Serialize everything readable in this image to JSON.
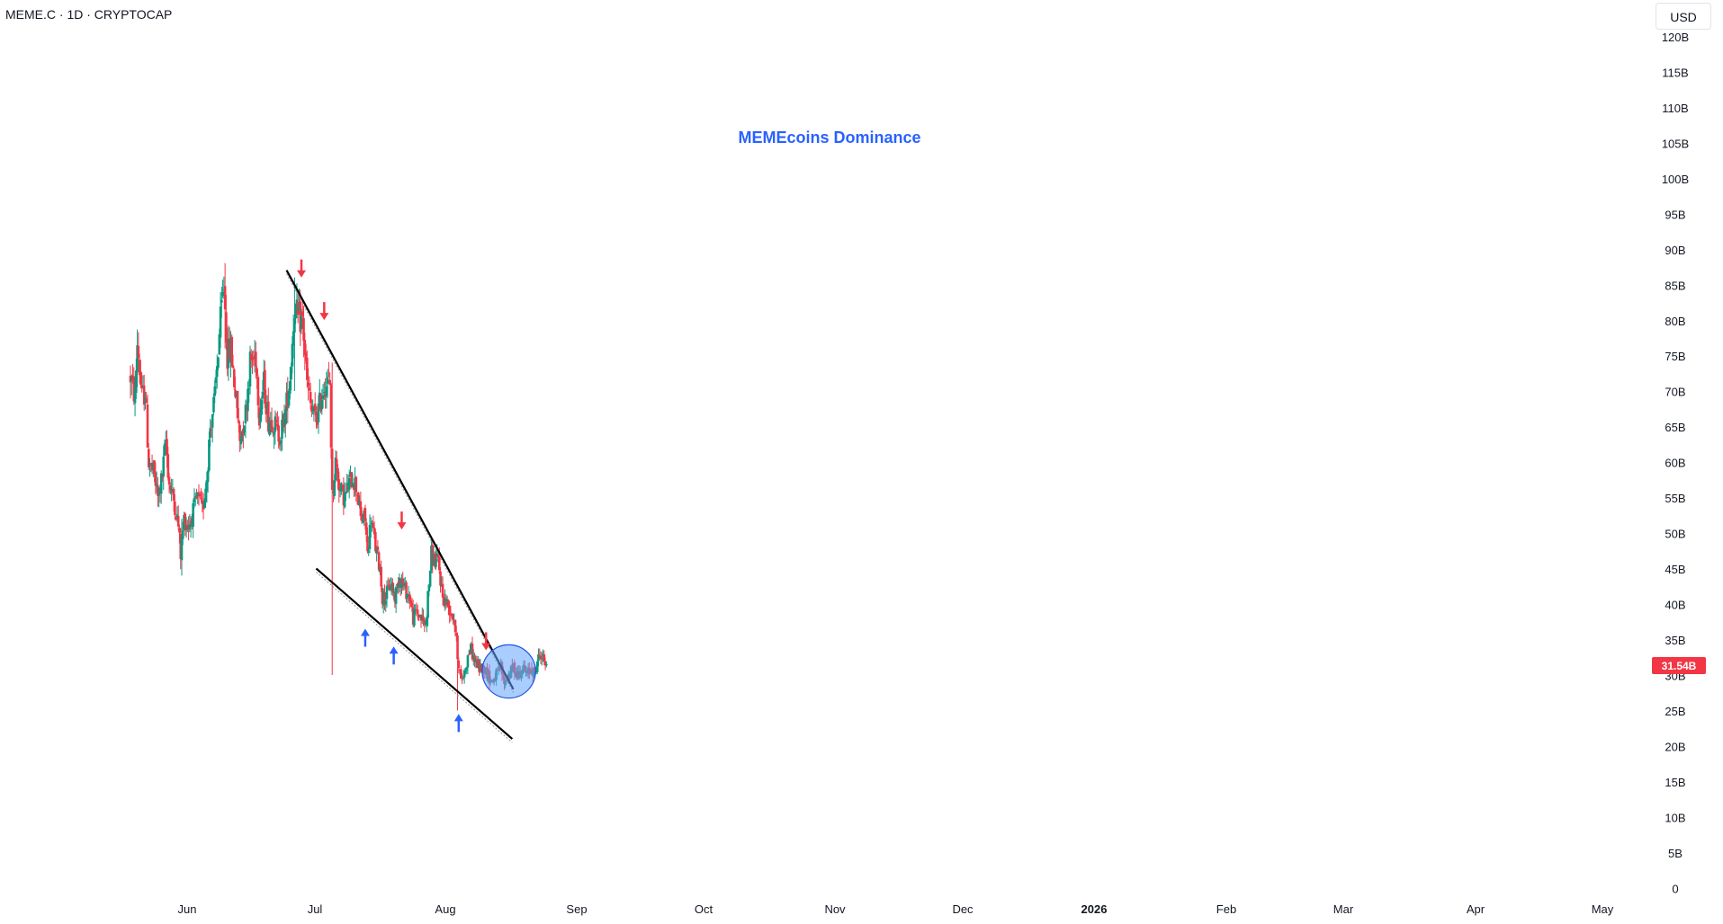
{
  "header": {
    "symbol": "MEME.C · 1D · CRYPTOCAP",
    "currency": "USD"
  },
  "chart_data": {
    "type": "candlestick",
    "title": "MEMEcoins Dominance",
    "price_label": "31.54B",
    "y_ticks": [
      "120B",
      "115B",
      "110B",
      "105B",
      "100B",
      "95B",
      "90B",
      "85B",
      "80B",
      "75B",
      "70B",
      "65B",
      "60B",
      "55B",
      "50B",
      "45B",
      "40B",
      "35B",
      "30B",
      "25B",
      "20B",
      "15B",
      "10B",
      "5B",
      "0"
    ],
    "x_ticks": [
      "Jun",
      "Jul",
      "Aug",
      "Sep",
      "Oct",
      "Nov",
      "Dec",
      "2026",
      "Feb",
      "Mar",
      "Apr",
      "May"
    ],
    "ylim": [
      0,
      120
    ],
    "x_start": "2025-05-22",
    "last_value": 31.54,
    "colors": {
      "up": "#089981",
      "down": "#f23645",
      "title": "#2962ff",
      "arrow_down": "#f23645",
      "arrow_up": "#2962ff",
      "circle": "#64a4ff"
    },
    "anchors": [
      [
        "2025-05-22",
        72
      ],
      [
        "2025-05-26",
        69
      ],
      [
        "2025-05-28",
        77
      ],
      [
        "2025-06-01",
        69
      ],
      [
        "2025-06-04",
        70
      ],
      [
        "2025-06-07",
        60
      ],
      [
        "2025-06-12",
        58
      ],
      [
        "2025-06-15",
        55
      ],
      [
        "2025-06-19",
        58
      ],
      [
        "2025-06-22",
        63
      ],
      [
        "2025-06-25",
        57
      ],
      [
        "2025-06-30",
        54
      ],
      [
        "2025-07-03",
        51
      ],
      [
        "2025-07-05",
        47
      ],
      [
        "2025-07-08",
        52
      ],
      [
        "2025-07-12",
        51
      ],
      [
        "2025-07-16",
        53
      ],
      [
        "2025-07-20",
        55
      ],
      [
        "2025-07-24",
        53
      ],
      [
        "2025-07-28",
        58
      ],
      [
        "2025-07-31",
        65
      ],
      [
        "2025-08-04",
        69
      ],
      [
        "2025-08-08",
        78
      ],
      [
        "2025-08-12",
        85
      ],
      [
        "2025-08-15",
        75
      ],
      [
        "2025-08-18",
        76
      ],
      [
        "2025-08-22",
        70
      ],
      [
        "2025-08-26",
        63
      ],
      [
        "2025-08-31",
        67
      ],
      [
        "2025-09-04",
        74
      ],
      [
        "2025-09-09",
        75
      ],
      [
        "2025-09-12",
        67
      ],
      [
        "2025-09-16",
        71
      ],
      [
        "2025-09-20",
        66
      ],
      [
        "2025-09-24",
        66
      ],
      [
        "2025-09-28",
        64
      ],
      [
        "2025-10-01",
        64
      ],
      [
        "2025-10-05",
        67
      ],
      [
        "2025-10-09",
        72
      ],
      [
        "2025-10-13",
        82
      ],
      [
        "2025-10-16",
        80
      ],
      [
        "2025-10-20",
        80
      ],
      [
        "2025-10-24",
        71
      ],
      [
        "2025-10-28",
        67
      ],
      [
        "2025-11-01",
        66
      ],
      [
        "2025-11-04",
        68
      ],
      [
        "2025-11-08",
        71
      ],
      [
        "2025-11-13",
        71
      ],
      [
        "2025-11-15",
        55
      ],
      [
        "2025-11-18",
        60
      ],
      [
        "2025-11-22",
        56
      ],
      [
        "2025-11-26",
        55
      ],
      [
        "2025-11-30",
        57
      ],
      [
        "2025-12-03",
        58
      ],
      [
        "2025-12-07",
        56
      ],
      [
        "2025-12-10",
        52
      ],
      [
        "2025-12-14",
        52
      ],
      [
        "2025-12-16",
        47
      ],
      [
        "2025-12-19",
        52
      ],
      [
        "2025-12-23",
        48
      ],
      [
        "2025-12-27",
        45
      ],
      [
        "2025-12-29",
        41
      ],
      [
        "2026-01-01",
        41
      ],
      [
        "2026-01-05",
        43
      ],
      [
        "2026-01-09",
        41
      ],
      [
        "2026-01-13",
        44
      ],
      [
        "2026-01-18",
        42
      ],
      [
        "2026-01-22",
        41
      ],
      [
        "2026-01-25",
        38
      ],
      [
        "2026-01-28",
        39
      ],
      [
        "2026-02-01",
        38
      ],
      [
        "2026-02-05",
        37
      ],
      [
        "2026-02-10",
        47
      ],
      [
        "2026-02-13",
        46
      ],
      [
        "2026-02-16",
        46
      ],
      [
        "2026-02-20",
        41
      ],
      [
        "2026-02-24",
        40
      ],
      [
        "2026-02-27",
        39
      ],
      [
        "2026-03-02",
        38
      ],
      [
        "2026-03-05",
        33
      ],
      [
        "2026-03-08",
        29
      ],
      [
        "2026-03-12",
        31
      ],
      [
        "2026-03-16",
        34
      ],
      [
        "2026-03-20",
        32
      ],
      [
        "2026-03-24",
        31
      ],
      [
        "2026-03-28",
        31
      ],
      [
        "2026-04-01",
        30
      ],
      [
        "2026-04-04",
        29
      ],
      [
        "2026-04-08",
        30
      ],
      [
        "2026-04-12",
        31
      ],
      [
        "2026-04-15",
        29
      ],
      [
        "2026-04-19",
        30
      ],
      [
        "2026-04-23",
        31
      ],
      [
        "2026-04-27",
        30
      ],
      [
        "2026-05-01",
        31
      ],
      [
        "2026-05-05",
        30
      ],
      [
        "2026-05-09",
        31
      ],
      [
        "2026-05-12",
        30
      ],
      [
        "2026-05-14",
        32
      ],
      [
        "2026-05-17",
        33
      ],
      [
        "2026-05-20",
        32
      ],
      [
        "2026-05-22",
        31.5
      ]
    ],
    "special_wicks": [
      [
        "2025-11-15",
        74,
        30
      ],
      [
        "2025-10-13",
        86,
        70
      ],
      [
        "2025-08-13",
        88,
        76
      ],
      [
        "2026-03-05",
        36,
        25
      ],
      [
        "2025-07-06",
        52,
        44
      ]
    ],
    "annotations": {
      "trendlines": [
        {
          "label": "upper-resistance",
          "from": [
            "2025-10-06",
            87
          ],
          "to": [
            "2026-04-23",
            28
          ]
        },
        {
          "label": "lower-support",
          "from": [
            "2025-11-01",
            45
          ],
          "to": [
            "2026-04-22",
            21
          ]
        }
      ],
      "arrows_down": [
        [
          "2025-10-19",
          87
        ],
        [
          "2025-11-08",
          81
        ],
        [
          "2026-01-15",
          51.5
        ],
        [
          "2026-03-30",
          34.5
        ]
      ],
      "arrows_up": [
        [
          "2025-12-14",
          35.5
        ],
        [
          "2026-01-08",
          33
        ],
        [
          "2026-03-06",
          23.5
        ]
      ],
      "breakout_circle": {
        "center": [
          "2026-04-19",
          30.5
        ],
        "radius_days": 6.5
      }
    }
  }
}
